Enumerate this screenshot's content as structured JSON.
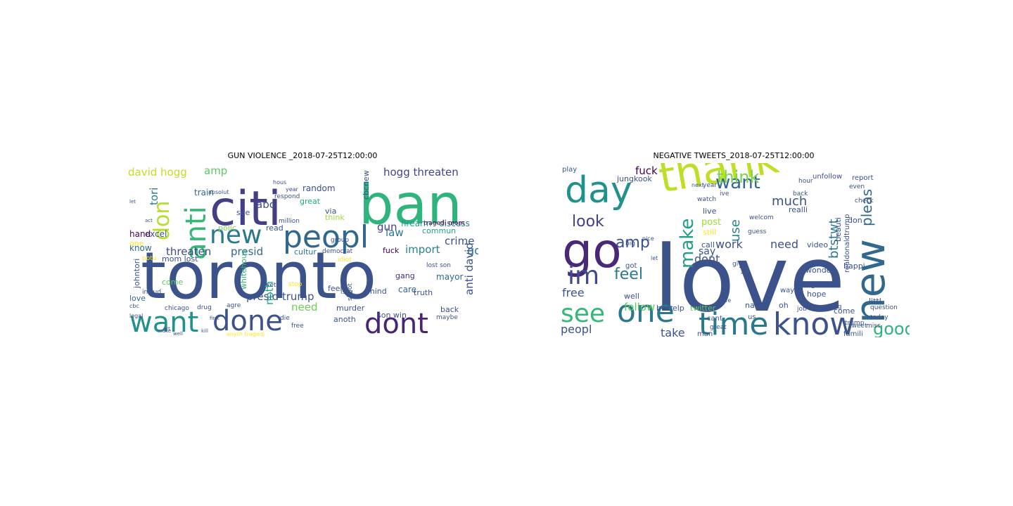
{
  "chart_data": [
    {
      "type": "wordcloud",
      "title": "GUN VIOLENCE _2018-07-25T12:00:00",
      "words": [
        {
          "text": "toronto",
          "color": "#3b528b"
        },
        {
          "text": "citi",
          "color": "#433e85"
        },
        {
          "text": "ban",
          "color": "#2fb47c"
        },
        {
          "text": "peopl",
          "color": "#31688e"
        },
        {
          "text": "want",
          "color": "#21918c"
        },
        {
          "text": "done",
          "color": "#3b528b"
        },
        {
          "text": "dont",
          "color": "#482475"
        },
        {
          "text": "new",
          "color": "#2a788e"
        },
        {
          "text": "anti",
          "color": "#35b779"
        },
        {
          "text": "don",
          "color": "#b5de2b"
        },
        {
          "text": "hogg threaten",
          "color": "#414487"
        },
        {
          "text": "presid",
          "color": "#31688e"
        },
        {
          "text": "threaten",
          "color": "#3e4a89"
        },
        {
          "text": "david hogg",
          "color": "#bddf26"
        },
        {
          "text": "amp",
          "color": "#5ec962"
        },
        {
          "text": "abc",
          "color": "#3b528b"
        },
        {
          "text": "law",
          "color": "#2a788e"
        },
        {
          "text": "import",
          "color": "#26828e"
        },
        {
          "text": "crime",
          "color": "#3b528b"
        },
        {
          "text": "gun",
          "color": "#433e85"
        },
        {
          "text": "go",
          "color": "#2c728e"
        },
        {
          "text": "presid trump",
          "color": "#3b528b"
        },
        {
          "text": "need",
          "color": "#6ccd5a"
        },
        {
          "text": "anti david",
          "color": "#3b528b"
        },
        {
          "text": "tori",
          "color": "#2a788e"
        },
        {
          "text": "noth",
          "color": "#22a884"
        },
        {
          "text": "train",
          "color": "#31688e"
        },
        {
          "text": "random",
          "color": "#3b528b"
        },
        {
          "text": "firearm",
          "color": "#1f9e89"
        },
        {
          "text": "discuss",
          "color": "#2a788e"
        },
        {
          "text": "excel",
          "color": "#3b528b"
        },
        {
          "text": "know",
          "color": "#31688e"
        },
        {
          "text": "hand",
          "color": "#440154"
        },
        {
          "text": "one",
          "color": "#fde725"
        },
        {
          "text": "johntori",
          "color": "#3b528b"
        },
        {
          "text": "polic",
          "color": "#7ad151"
        },
        {
          "text": "read",
          "color": "#3b528b"
        },
        {
          "text": "commun",
          "color": "#1f9e89"
        },
        {
          "text": "cultur",
          "color": "#2a788e"
        },
        {
          "text": "fuck",
          "color": "#440154"
        },
        {
          "text": "mayor",
          "color": "#31688e"
        },
        {
          "text": "gang",
          "color": "#472d7b"
        },
        {
          "text": "care",
          "color": "#31688e"
        },
        {
          "text": "son win",
          "color": "#3b528b"
        },
        {
          "text": "anoth",
          "color": "#3b528b"
        },
        {
          "text": "murder",
          "color": "#3b528b"
        },
        {
          "text": "back",
          "color": "#3b528b"
        },
        {
          "text": "love",
          "color": "#31688e"
        },
        {
          "text": "great",
          "color": "#22a884"
        },
        {
          "text": "via",
          "color": "#3b528b"
        },
        {
          "text": "think",
          "color": "#a0da39"
        },
        {
          "text": "see",
          "color": "#3b528b"
        },
        {
          "text": "cbcnew",
          "color": "#3b528b"
        },
        {
          "text": "come",
          "color": "#5ec962"
        },
        {
          "text": "mom lost",
          "color": "#3b528b"
        },
        {
          "text": "whitehous",
          "color": "#35b779"
        },
        {
          "text": "feel",
          "color": "#3b528b"
        },
        {
          "text": "mind",
          "color": "#3b528b"
        },
        {
          "text": "truth",
          "color": "#3b528b"
        },
        {
          "text": "drug",
          "color": "#3b528b"
        },
        {
          "text": "chicago",
          "color": "#3b528b"
        },
        {
          "text": "includ",
          "color": "#3b528b"
        },
        {
          "text": "tragedi mom",
          "color": "#440154"
        },
        {
          "text": "lost son",
          "color": "#3b528b"
        },
        {
          "text": "group",
          "color": "#3b528b"
        },
        {
          "text": "democrat",
          "color": "#3b528b"
        },
        {
          "text": "issu",
          "color": "#3b528b"
        },
        {
          "text": "yet",
          "color": "#3b528b"
        },
        {
          "text": "stop",
          "color": "#fde725"
        },
        {
          "text": "agre",
          "color": "#3b528b"
        },
        {
          "text": "die",
          "color": "#3b528b"
        },
        {
          "text": "free",
          "color": "#3b528b"
        },
        {
          "text": "idiot",
          "color": "#fde725"
        },
        {
          "text": "shoot",
          "color": "#3b528b"
        },
        {
          "text": "maybe",
          "color": "#3b528b"
        },
        {
          "text": "hous",
          "color": "#3b528b"
        },
        {
          "text": "year",
          "color": "#3b528b"
        },
        {
          "text": "respond",
          "color": "#3b528b"
        },
        {
          "text": "million",
          "color": "#3b528b"
        },
        {
          "text": "potu",
          "color": "#fde725"
        },
        {
          "text": "make",
          "color": "#3b528b"
        },
        {
          "text": "kill",
          "color": "#3b528b"
        },
        {
          "text": "art",
          "color": "#3b528b"
        },
        {
          "text": "first",
          "color": "#3b528b"
        },
        {
          "text": "anyth tragedi",
          "color": "#fde725"
        },
        {
          "text": "absolut",
          "color": "#3b528b"
        },
        {
          "text": "act",
          "color": "#3b528b"
        },
        {
          "text": "let",
          "color": "#3b528b"
        },
        {
          "text": "cbc",
          "color": "#3b528b"
        },
        {
          "text": "legal",
          "color": "#3b528b"
        },
        {
          "text": "well",
          "color": "#3b528b"
        }
      ]
    },
    {
      "type": "wordcloud",
      "title": "NEGATIVE TWEETS_2018-07-25T12:00:00",
      "words": [
        {
          "text": "love",
          "color": "#3b528b"
        },
        {
          "text": "thank",
          "color": "#bddf26"
        },
        {
          "text": "day",
          "color": "#21918c"
        },
        {
          "text": "new",
          "color": "#31688e"
        },
        {
          "text": "go",
          "color": "#482878"
        },
        {
          "text": "time",
          "color": "#2a788e"
        },
        {
          "text": "know",
          "color": "#3b528b"
        },
        {
          "text": "one",
          "color": "#2a788e"
        },
        {
          "text": "see",
          "color": "#35b779"
        },
        {
          "text": "im",
          "color": "#3e4a89"
        },
        {
          "text": "want",
          "color": "#31688e"
        },
        {
          "text": "think",
          "color": "#7ad151"
        },
        {
          "text": "look",
          "color": "#433e85"
        },
        {
          "text": "make",
          "color": "#1f9e89"
        },
        {
          "text": "good",
          "color": "#2fb47c"
        },
        {
          "text": "feel",
          "color": "#2a788e"
        },
        {
          "text": "amp",
          "color": "#3b528b"
        },
        {
          "text": "pleas",
          "color": "#31688e"
        },
        {
          "text": "btstwt",
          "color": "#2a788e"
        },
        {
          "text": "much",
          "color": "#3b528b"
        },
        {
          "text": "use",
          "color": "#26828e"
        },
        {
          "text": "peopl",
          "color": "#3b528b"
        },
        {
          "text": "work",
          "color": "#3b528b"
        },
        {
          "text": "need",
          "color": "#3b528b"
        },
        {
          "text": "dont",
          "color": "#3b528b"
        },
        {
          "text": "follow",
          "color": "#5ec962"
        },
        {
          "text": "take",
          "color": "#3b528b"
        },
        {
          "text": "free",
          "color": "#3b528b"
        },
        {
          "text": "fuck",
          "color": "#440154"
        },
        {
          "text": "say",
          "color": "#3b528b"
        },
        {
          "text": "post",
          "color": "#a0da39"
        },
        {
          "text": "via",
          "color": "#3b528b"
        },
        {
          "text": "jungkook",
          "color": "#3b528b"
        },
        {
          "text": "video",
          "color": "#3b528b"
        },
        {
          "text": "realli",
          "color": "#3b528b"
        },
        {
          "text": "happi",
          "color": "#3b528b"
        },
        {
          "text": "twitter",
          "color": "#5ec962"
        },
        {
          "text": "littl",
          "color": "#3b528b"
        },
        {
          "text": "wonder",
          "color": "#3b528b"
        },
        {
          "text": "beauti",
          "color": "#3b528b"
        },
        {
          "text": "realdonaldtrump",
          "color": "#3b528b"
        },
        {
          "text": "still",
          "color": "#fde725"
        },
        {
          "text": "call",
          "color": "#3b528b"
        },
        {
          "text": "name",
          "color": "#3b528b"
        },
        {
          "text": "oh",
          "color": "#3b528b"
        },
        {
          "text": "best",
          "color": "#3b528b"
        },
        {
          "text": "man",
          "color": "#3b528b"
        },
        {
          "text": "us",
          "color": "#3b528b"
        },
        {
          "text": "thing",
          "color": "#3b528b"
        },
        {
          "text": "hope",
          "color": "#3b528b"
        },
        {
          "text": "come",
          "color": "#3b528b"
        },
        {
          "text": "live",
          "color": "#3b528b"
        },
        {
          "text": "help",
          "color": "#3b528b"
        },
        {
          "text": "watch",
          "color": "#3b528b"
        },
        {
          "text": "year",
          "color": "#3b528b"
        },
        {
          "text": "back",
          "color": "#3b528b"
        },
        {
          "text": "hour",
          "color": "#3b528b"
        },
        {
          "text": "even",
          "color": "#3b528b"
        },
        {
          "text": "check",
          "color": "#3b528b"
        },
        {
          "text": "don",
          "color": "#3b528b"
        },
        {
          "text": "play",
          "color": "#3b528b"
        },
        {
          "text": "got",
          "color": "#3b528b"
        },
        {
          "text": "well",
          "color": "#3b528b"
        },
        {
          "text": "cant",
          "color": "#3b528b"
        },
        {
          "text": "way",
          "color": "#3b528b"
        },
        {
          "text": "famili",
          "color": "#3b528b"
        },
        {
          "text": "trump",
          "color": "#3b528b"
        },
        {
          "text": "guess",
          "color": "#3b528b"
        },
        {
          "text": "welcom",
          "color": "#3b528b"
        },
        {
          "text": "unfollow",
          "color": "#3b528b"
        },
        {
          "text": "report",
          "color": "#3b528b"
        },
        {
          "text": "ive",
          "color": "#3b528b"
        },
        {
          "text": "big",
          "color": "#3b528b"
        },
        {
          "text": "great",
          "color": "#3b528b"
        },
        {
          "text": "miss",
          "color": "#3b528b"
        },
        {
          "text": "question",
          "color": "#3b528b"
        },
        {
          "text": "tweet",
          "color": "#3b528b"
        },
        {
          "text": "today",
          "color": "#3b528b"
        },
        {
          "text": "job",
          "color": "#3b528b"
        },
        {
          "text": "give",
          "color": "#3b528b"
        },
        {
          "text": "long",
          "color": "#3b528b"
        },
        {
          "text": "nice",
          "color": "#3b528b"
        },
        {
          "text": "let",
          "color": "#3b528b"
        },
        {
          "text": "next",
          "color": "#3b528b"
        },
        {
          "text": "life",
          "color": "#3b528b"
        }
      ]
    }
  ]
}
